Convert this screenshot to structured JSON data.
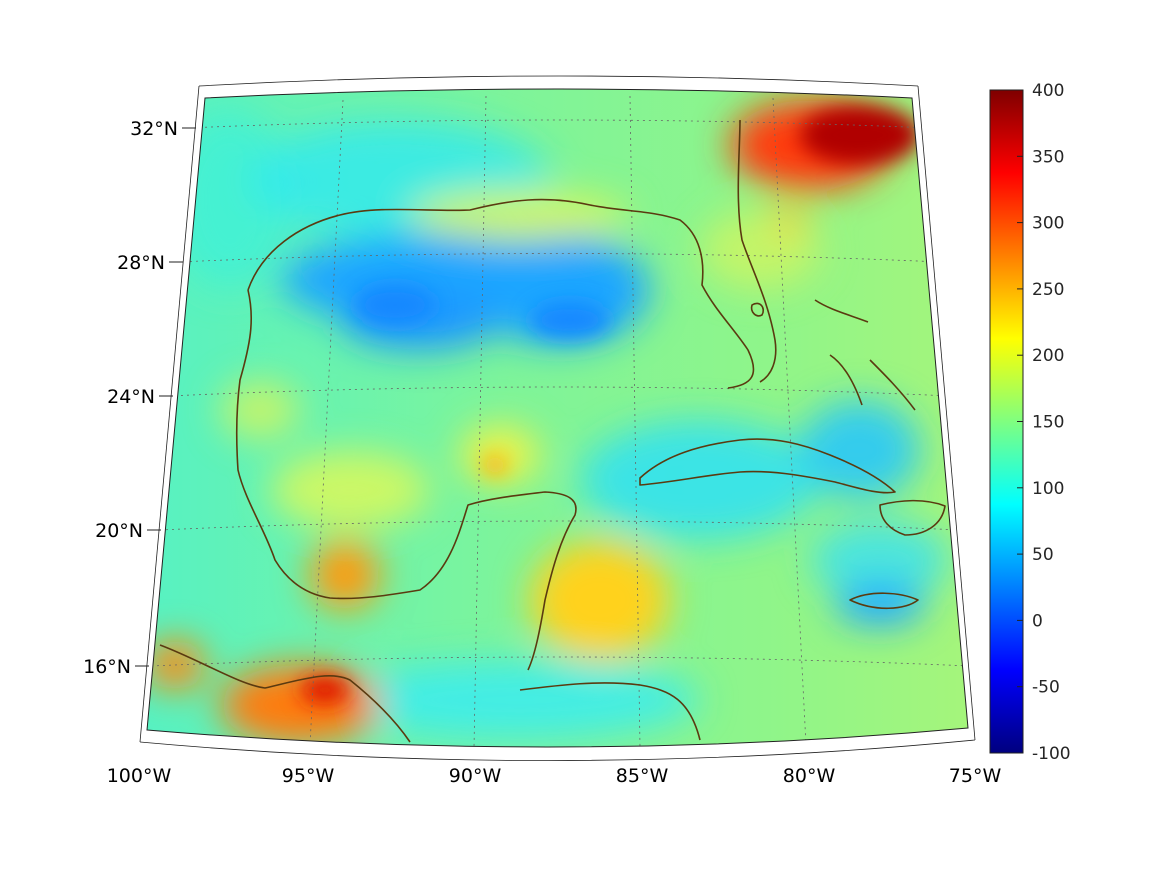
{
  "map": {
    "projection": "conic",
    "lat_labels": [
      {
        "lat": 32,
        "label": "32°N"
      },
      {
        "lat": 28,
        "label": "28°N"
      },
      {
        "lat": 24,
        "label": "24°N"
      },
      {
        "lat": 20,
        "label": "20°N"
      },
      {
        "lat": 16,
        "label": "16°N"
      }
    ],
    "lon_labels": [
      {
        "lon": -100,
        "label": "100°W"
      },
      {
        "lon": -95,
        "label": "95°W"
      },
      {
        "lon": -90,
        "label": "90°W"
      },
      {
        "lon": -85,
        "label": "85°W"
      },
      {
        "lon": -80,
        "label": "80°W"
      },
      {
        "lon": -75,
        "label": "75°W"
      }
    ],
    "lon_range": [
      -100,
      -75
    ],
    "lat_range": [
      14,
      33
    ],
    "grid": true,
    "coastline_color": "#5a3a10",
    "colormap": "jet",
    "colorbar": {
      "placement": "right",
      "min": -100,
      "max": 400,
      "ticks": [
        "400",
        "350",
        "300",
        "250",
        "200",
        "150",
        "100",
        "50",
        "0",
        "-50",
        "-100"
      ]
    }
  }
}
